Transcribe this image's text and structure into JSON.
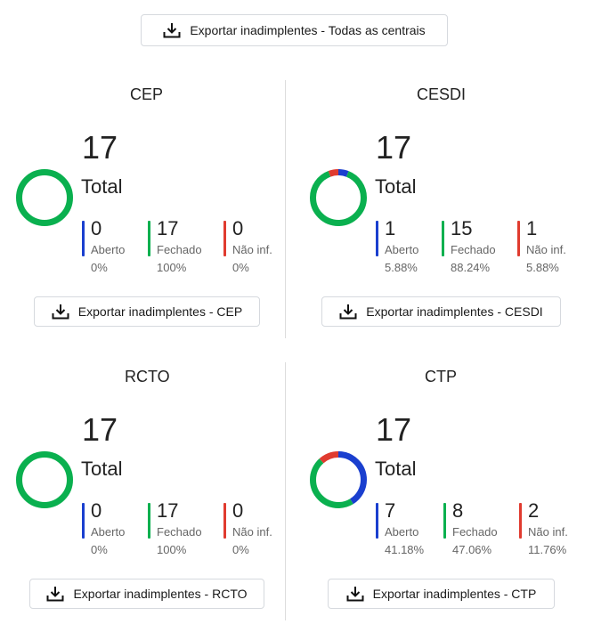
{
  "global_export": {
    "label": "Exportar inadimplentes - Todas as centrais"
  },
  "colors": {
    "aberto": "#1a3fcf",
    "fechado": "#0ab04f",
    "nao_inf": "#e03b2f"
  },
  "panels": [
    {
      "title": "CEP",
      "total": "17",
      "total_label": "Total",
      "stats": [
        {
          "value": "0",
          "label": "Aberto",
          "pct": "0%"
        },
        {
          "value": "17",
          "label": "Fechado",
          "pct": "100%"
        },
        {
          "value": "0",
          "label": "Não inf.",
          "pct": "0%"
        }
      ],
      "shares": [
        0,
        1,
        0
      ],
      "export_label": "Exportar inadimplentes - CEP"
    },
    {
      "title": "CESDI",
      "total": "17",
      "total_label": "Total",
      "stats": [
        {
          "value": "1",
          "label": "Aberto",
          "pct": "5.88%"
        },
        {
          "value": "15",
          "label": "Fechado",
          "pct": "88.24%"
        },
        {
          "value": "1",
          "label": "Não inf.",
          "pct": "5.88%"
        }
      ],
      "shares": [
        0.0588,
        0.8824,
        0.0588
      ],
      "export_label": "Exportar inadimplentes - CESDI"
    },
    {
      "title": "RCTO",
      "total": "17",
      "total_label": "Total",
      "stats": [
        {
          "value": "0",
          "label": "Aberto",
          "pct": "0%"
        },
        {
          "value": "17",
          "label": "Fechado",
          "pct": "100%"
        },
        {
          "value": "0",
          "label": "Não inf.",
          "pct": "0%"
        }
      ],
      "shares": [
        0,
        1,
        0
      ],
      "export_label": "Exportar inadimplentes - RCTO"
    },
    {
      "title": "CTP",
      "total": "17",
      "total_label": "Total",
      "stats": [
        {
          "value": "7",
          "label": "Aberto",
          "pct": "41.18%"
        },
        {
          "value": "8",
          "label": "Fechado",
          "pct": "47.06%"
        },
        {
          "value": "2",
          "label": "Não inf.",
          "pct": "11.76%"
        }
      ],
      "shares": [
        0.4118,
        0.4706,
        0.1176
      ],
      "export_label": "Exportar inadimplentes - CTP"
    }
  ]
}
